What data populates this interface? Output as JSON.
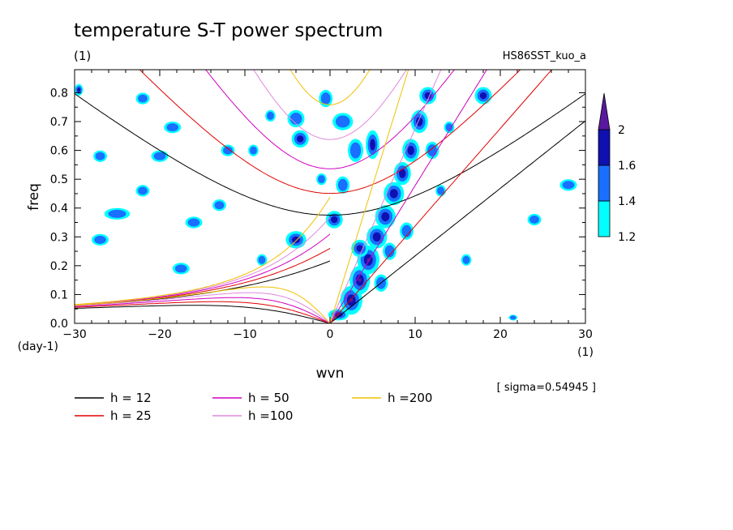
{
  "chart_data": {
    "type": "heatmap",
    "title": "temperature S-T power spectrum",
    "subtitle_left": "(1)",
    "subtitle_right": "HS86SST_kuo_a",
    "xlabel": "wvn",
    "ylabel": "freq",
    "x_unit": "(1)",
    "y_unit": "(day-1)",
    "xlim": [
      -30,
      30
    ],
    "ylim": [
      0,
      0.88
    ],
    "xticks": [
      -30,
      -20,
      -10,
      0,
      10,
      20,
      30
    ],
    "yticks": [
      0.0,
      0.1,
      0.2,
      0.3,
      0.4,
      0.5,
      0.6,
      0.7,
      0.8
    ],
    "sigma_note": "[ sigma=0.54945 ]",
    "colorbar": {
      "levels": [
        "1.2",
        "1.4",
        "1.6",
        "2"
      ],
      "colors": [
        "#00ffff",
        "#1a6fff",
        "#1010b0",
        "#5a18a0"
      ]
    },
    "legend": [
      {
        "label": "h = 12",
        "color": "#000000"
      },
      {
        "label": "h = 25",
        "color": "#e00000"
      },
      {
        "label": "h = 50",
        "color": "#d000c0"
      },
      {
        "label": "h =100",
        "color": "#dd88dd"
      },
      {
        "label": "h =200",
        "color": "#f0c000"
      }
    ],
    "dispersion_h": [
      12,
      25,
      50,
      100,
      200
    ],
    "blobs": [
      [
        1.0,
        0.03,
        1.2,
        0.02,
        3
      ],
      [
        2.5,
        0.08,
        1.3,
        0.05,
        3
      ],
      [
        3.5,
        0.15,
        1.2,
        0.05,
        3
      ],
      [
        4.5,
        0.22,
        1.3,
        0.05,
        3
      ],
      [
        5.5,
        0.3,
        1.2,
        0.04,
        2
      ],
      [
        6.5,
        0.37,
        1.2,
        0.04,
        2
      ],
      [
        7.5,
        0.45,
        1.2,
        0.04,
        2
      ],
      [
        8.5,
        0.52,
        1.0,
        0.04,
        2
      ],
      [
        9.5,
        0.6,
        1.0,
        0.04,
        2
      ],
      [
        10.5,
        0.7,
        1.0,
        0.04,
        2
      ],
      [
        5.0,
        0.62,
        0.8,
        0.05,
        2
      ],
      [
        3.0,
        0.6,
        0.9,
        0.04,
        1
      ],
      [
        -4.0,
        0.29,
        1.2,
        0.03,
        2
      ],
      [
        0.5,
        0.36,
        1.0,
        0.03,
        2
      ],
      [
        1.5,
        0.48,
        0.8,
        0.03,
        1
      ],
      [
        -3.5,
        0.64,
        1.0,
        0.03,
        2
      ],
      [
        -4.0,
        0.71,
        1.0,
        0.03,
        1
      ],
      [
        1.5,
        0.7,
        1.2,
        0.03,
        1
      ],
      [
        -0.5,
        0.78,
        0.8,
        0.03,
        1
      ],
      [
        11.5,
        0.79,
        1.0,
        0.03,
        2
      ],
      [
        18.0,
        0.79,
        1.0,
        0.03,
        2
      ],
      [
        -18.5,
        0.68,
        1.0,
        0.02,
        1
      ],
      [
        -25.0,
        0.38,
        1.5,
        0.02,
        1
      ],
      [
        -16.0,
        0.35,
        1.0,
        0.02,
        1
      ],
      [
        -17.5,
        0.19,
        1.0,
        0.02,
        1
      ],
      [
        -8.0,
        0.22,
        0.6,
        0.02,
        1
      ],
      [
        -20.0,
        0.58,
        1.0,
        0.02,
        1
      ],
      [
        -12.0,
        0.6,
        0.8,
        0.02,
        1
      ],
      [
        -22.0,
        0.78,
        0.8,
        0.02,
        1
      ],
      [
        24.0,
        0.36,
        0.8,
        0.02,
        1
      ],
      [
        28.0,
        0.48,
        1.0,
        0.02,
        1
      ],
      [
        -27.0,
        0.58,
        0.8,
        0.02,
        1
      ],
      [
        -29.5,
        0.81,
        0.5,
        0.02,
        2
      ],
      [
        3.5,
        0.26,
        1.0,
        0.03,
        2
      ],
      [
        7.0,
        0.25,
        0.8,
        0.03,
        1
      ],
      [
        6.0,
        0.14,
        0.8,
        0.03,
        1
      ],
      [
        -1.0,
        0.5,
        0.6,
        0.02,
        1
      ],
      [
        -13.0,
        0.41,
        0.8,
        0.02,
        1
      ],
      [
        21.5,
        0.02,
        0.5,
        0.01,
        1
      ],
      [
        16.0,
        0.22,
        0.6,
        0.02,
        1
      ],
      [
        -22.0,
        0.46,
        0.8,
        0.02,
        1
      ],
      [
        9.0,
        0.32,
        0.8,
        0.03,
        1
      ],
      [
        12.0,
        0.6,
        0.8,
        0.03,
        1
      ],
      [
        14.0,
        0.68,
        0.6,
        0.02,
        1
      ],
      [
        -7.0,
        0.72,
        0.6,
        0.02,
        1
      ],
      [
        13.0,
        0.46,
        0.6,
        0.02,
        1
      ],
      [
        -27.0,
        0.29,
        1.0,
        0.02,
        1
      ],
      [
        -9.0,
        0.6,
        0.6,
        0.02,
        1
      ]
    ]
  }
}
